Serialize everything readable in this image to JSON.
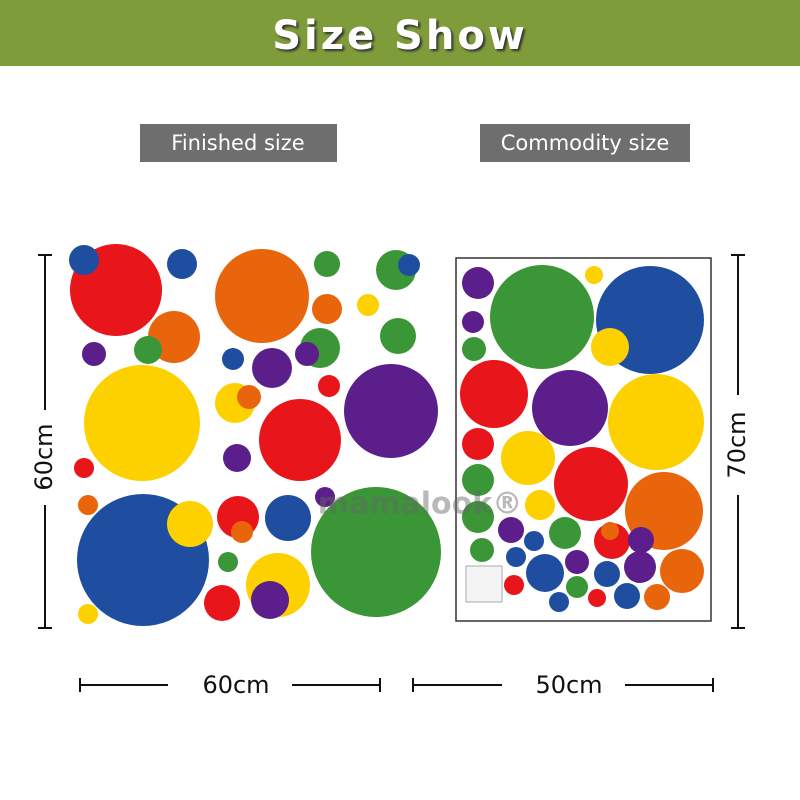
{
  "header": {
    "title": "Size Show"
  },
  "labels": {
    "finished": "Finished size",
    "commodity": "Commodity size"
  },
  "finished": {
    "height": "60cm",
    "width": "60cm"
  },
  "commodity": {
    "height": "70cm",
    "width": "50cm"
  },
  "watermark": "mamalook®"
}
